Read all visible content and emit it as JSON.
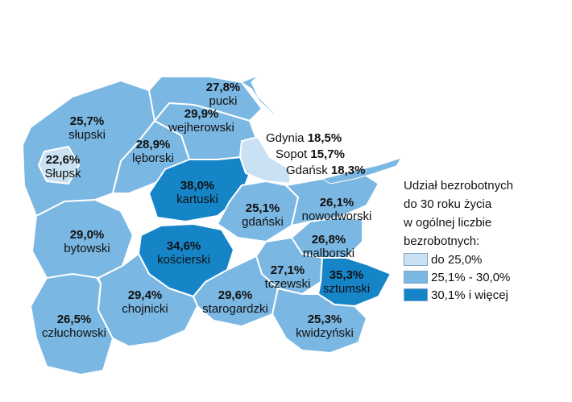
{
  "colors": {
    "light": "#c9e1f2",
    "mid": "#7ab7e2",
    "dark": "#1585c8",
    "border": "#ffffff",
    "sea_shore": "#7ab7e2"
  },
  "regions": {
    "slupski": {
      "value": "25,7%",
      "name": "słupski",
      "class": "mid"
    },
    "slupsk": {
      "value": "22,6%",
      "name": "Słupsk",
      "class": "light"
    },
    "puck": {
      "value": "27,8%",
      "name": "pucki",
      "class": "mid"
    },
    "wejherowski": {
      "value": "29,9%",
      "name": "wejherowski",
      "class": "mid"
    },
    "leborski": {
      "value": "28,9%",
      "name": "lęborski",
      "class": "mid"
    },
    "kartuski": {
      "value": "38,0%",
      "name": "kartuski",
      "class": "dark"
    },
    "gdanski": {
      "value": "25,1%",
      "name": "gdański",
      "class": "mid"
    },
    "nowodworski": {
      "value": "26,1%",
      "name": "nowodworski",
      "class": "mid"
    },
    "bytowski": {
      "value": "29,0%",
      "name": "bytowski",
      "class": "mid"
    },
    "koscierski": {
      "value": "34,6%",
      "name": "kościerski",
      "class": "dark"
    },
    "malborski": {
      "value": "26,8%",
      "name": "malborski",
      "class": "mid"
    },
    "tczewski": {
      "value": "27,1%",
      "name": "tczewski",
      "class": "mid"
    },
    "sztumski": {
      "value": "35,3%",
      "name": "sztumski",
      "class": "dark"
    },
    "chojnicki": {
      "value": "29,4%",
      "name": "chojnicki",
      "class": "mid"
    },
    "starogardzki": {
      "value": "29,6%",
      "name": "starogardzki",
      "class": "mid"
    },
    "czluchowski": {
      "value": "26,5%",
      "name": "człuchowski",
      "class": "mid"
    },
    "kwidzynski": {
      "value": "25,3%",
      "name": "kwidzyński",
      "class": "mid"
    }
  },
  "cities": {
    "gdynia": {
      "name": "Gdynia",
      "value": "18,5%"
    },
    "sopot": {
      "name": "Sopot",
      "value": "15,7%"
    },
    "gdansk": {
      "name": "Gdańsk",
      "value": "18,3%"
    }
  },
  "legend": {
    "title_lines": [
      "Udział bezrobotnych",
      "do 30 roku życia",
      "w ogólnej liczbie",
      "bezrobotnych:"
    ],
    "items": [
      {
        "label": "do 25,0%",
        "class": "light"
      },
      {
        "label": "25,1% - 30,0%",
        "class": "mid"
      },
      {
        "label": "30,1% i więcej",
        "class": "dark"
      }
    ]
  }
}
